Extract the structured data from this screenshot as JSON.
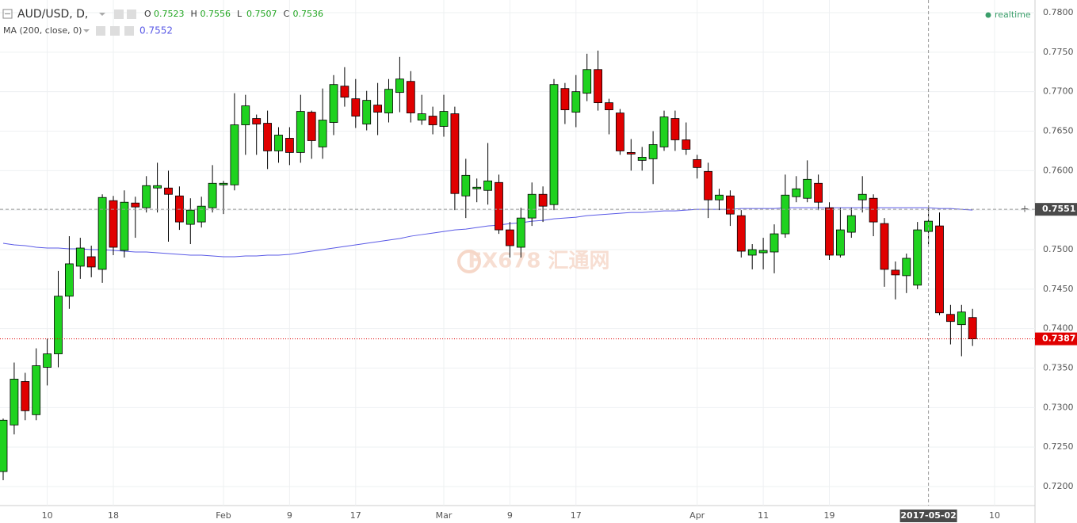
{
  "chart_data": {
    "type": "candlestick",
    "symbol": "AUD/USD, D,",
    "legend_ohlc": [
      {
        "label": "O",
        "value": 0.7523
      },
      {
        "label": "H",
        "value": 0.7556
      },
      {
        "label": "L",
        "value": 0.7507
      },
      {
        "label": "C",
        "value": 0.7536
      }
    ],
    "realtime": "realtime",
    "watermark": "FX678 汇通网",
    "up_color": "#1fd21f",
    "down_color": "#e00000",
    "categories": [
      null,
      null,
      null,
      null,
      "10",
      null,
      null,
      null,
      null,
      null,
      "18",
      null,
      null,
      null,
      null,
      null,
      null,
      null,
      null,
      null,
      "Feb",
      null,
      null,
      null,
      null,
      null,
      "9",
      null,
      null,
      null,
      null,
      null,
      "17",
      null,
      null,
      null,
      null,
      null,
      null,
      null,
      "Mar",
      null,
      null,
      null,
      null,
      null,
      "9",
      null,
      null,
      null,
      null,
      null,
      "17",
      null,
      null,
      null,
      null,
      null,
      null,
      null,
      null,
      null,
      null,
      "Apr",
      null,
      null,
      null,
      null,
      null,
      "11",
      null,
      null,
      null,
      null,
      null,
      "19",
      null,
      null,
      null,
      null,
      null,
      null,
      null,
      null,
      "2017-05-02",
      null,
      null,
      null,
      null,
      null,
      "10"
    ],
    "open": [
      0.7219,
      0.7278,
      0.7333,
      0.7291,
      0.7351,
      0.7368,
      0.7441,
      0.7479,
      0.7491,
      0.7475,
      0.7562,
      0.7499,
      0.7559,
      0.7553,
      0.7578,
      0.7578,
      0.7568,
      0.7532,
      0.7535,
      0.7553,
      0.7582,
      0.7582,
      0.7658,
      0.7666,
      0.766,
      0.7625,
      0.7641,
      0.7623,
      0.7674,
      0.763,
      0.7661,
      0.7707,
      0.7691,
      0.7659,
      0.7683,
      0.7673,
      0.7699,
      0.7713,
      0.7664,
      0.7669,
      0.7656,
      0.7672,
      0.7568,
      0.7577,
      0.7575,
      0.7585,
      0.7525,
      0.7503,
      0.754,
      0.757,
      0.7557,
      0.7704,
      0.7674,
      0.7698,
      0.7728,
      0.7686,
      0.7673,
      0.7623,
      0.7613,
      0.7615,
      0.763,
      0.7666,
      0.7639,
      0.7614,
      0.7599,
      0.7563,
      0.7568,
      0.7543,
      0.7493,
      0.7496,
      0.7497,
      0.752,
      0.7567,
      0.7565,
      0.7584,
      0.7553,
      0.7493,
      0.7522,
      0.7563,
      0.7565,
      0.7533,
      0.7474,
      0.7467,
      0.7455,
      0.7523,
      0.753,
      0.7418,
      0.7405,
      0.7414,
      null,
      null
    ],
    "high": [
      0.7286,
      0.7357,
      0.7344,
      0.7375,
      0.7387,
      0.7473,
      0.7517,
      0.7515,
      0.7505,
      0.757,
      0.7568,
      0.7575,
      0.7567,
      0.7593,
      0.761,
      0.76,
      0.758,
      0.7565,
      0.7567,
      0.7607,
      0.7587,
      0.7698,
      0.7696,
      0.7671,
      0.7676,
      0.7655,
      0.7655,
      0.7696,
      0.7676,
      0.7704,
      0.7721,
      0.7731,
      0.7716,
      0.7701,
      0.7711,
      0.7716,
      0.7744,
      0.7726,
      0.7696,
      0.7681,
      0.7696,
      0.7681,
      0.7615,
      0.759,
      0.7635,
      0.7595,
      0.7535,
      0.7553,
      0.7585,
      0.758,
      0.7716,
      0.7711,
      0.7721,
      0.7748,
      0.7752,
      0.7691,
      0.7678,
      0.764,
      0.763,
      0.765,
      0.7676,
      0.7676,
      0.7661,
      0.762,
      0.761,
      0.7577,
      0.7575,
      0.755,
      0.7507,
      0.7515,
      0.7532,
      0.7595,
      0.7593,
      0.7613,
      0.7595,
      0.756,
      0.7553,
      0.7553,
      0.7593,
      0.757,
      0.754,
      0.7485,
      0.7495,
      0.7535,
      0.7556,
      0.7547,
      0.743,
      0.743,
      0.7425,
      null,
      null
    ],
    "low": [
      0.7208,
      0.7266,
      0.7284,
      0.7284,
      0.7328,
      0.7351,
      0.7425,
      0.7463,
      0.7465,
      0.7458,
      0.7493,
      0.749,
      0.7515,
      0.7547,
      0.7547,
      0.751,
      0.7525,
      0.7507,
      0.7528,
      0.7547,
      0.7545,
      0.7575,
      0.762,
      0.762,
      0.7602,
      0.761,
      0.7607,
      0.761,
      0.7615,
      0.7615,
      0.7645,
      0.7681,
      0.7654,
      0.7651,
      0.7645,
      0.7661,
      0.7674,
      0.7661,
      0.7658,
      0.7646,
      0.7643,
      0.755,
      0.754,
      0.756,
      0.7557,
      0.752,
      0.749,
      0.749,
      0.753,
      0.7535,
      0.755,
      0.7659,
      0.7655,
      0.7688,
      0.7676,
      0.7646,
      0.762,
      0.76,
      0.76,
      0.7583,
      0.7625,
      0.7625,
      0.762,
      0.759,
      0.754,
      0.755,
      0.753,
      0.749,
      0.7475,
      0.7475,
      0.747,
      0.7515,
      0.756,
      0.756,
      0.755,
      0.7487,
      0.749,
      0.7515,
      0.7547,
      0.7517,
      0.7453,
      0.7437,
      0.7445,
      0.745,
      0.7507,
      0.7417,
      0.738,
      0.7365,
      0.7378,
      null,
      null
    ],
    "close": [
      0.7284,
      0.7336,
      0.7296,
      0.7353,
      0.7368,
      0.7441,
      0.7482,
      0.7502,
      0.7478,
      0.7566,
      0.7503,
      0.756,
      0.7554,
      0.7581,
      0.7581,
      0.757,
      0.7535,
      0.755,
      0.7555,
      0.7584,
      0.7584,
      0.7658,
      0.7682,
      0.7659,
      0.7625,
      0.7645,
      0.7623,
      0.7675,
      0.7638,
      0.7664,
      0.7709,
      0.7693,
      0.7669,
      0.7689,
      0.7674,
      0.7703,
      0.7716,
      0.7673,
      0.7672,
      0.7658,
      0.7675,
      0.7571,
      0.7594,
      0.7579,
      0.7587,
      0.7525,
      0.7505,
      0.754,
      0.757,
      0.7555,
      0.7709,
      0.7677,
      0.77,
      0.7728,
      0.7686,
      0.7677,
      0.7625,
      0.7621,
      0.7617,
      0.7633,
      0.7668,
      0.7639,
      0.7627,
      0.7604,
      0.7563,
      0.7569,
      0.7545,
      0.7498,
      0.75,
      0.7499,
      0.752,
      0.7569,
      0.7577,
      0.7589,
      0.756,
      0.7493,
      0.7525,
      0.7543,
      0.757,
      0.7535,
      0.7475,
      0.7468,
      0.7489,
      0.7525,
      0.7536,
      0.742,
      0.7409,
      0.7421,
      0.7387,
      null,
      null
    ],
    "ma": {
      "name": "MA (200, close, 0)",
      "color": "#5a5ae6",
      "current": 0.7552,
      "values": [
        0.7508,
        0.7506,
        0.7505,
        0.7503,
        0.7502,
        0.7502,
        0.7501,
        0.7501,
        0.75,
        0.75,
        0.7499,
        0.7498,
        0.7497,
        0.7497,
        0.7496,
        0.7495,
        0.7494,
        0.7493,
        0.7493,
        0.7492,
        0.7491,
        0.7491,
        0.7492,
        0.7492,
        0.7493,
        0.7493,
        0.7494,
        0.7496,
        0.7498,
        0.75,
        0.7502,
        0.7504,
        0.7506,
        0.7508,
        0.751,
        0.7512,
        0.7514,
        0.7517,
        0.7519,
        0.7521,
        0.7523,
        0.7525,
        0.7526,
        0.7528,
        0.753,
        0.7531,
        0.7533,
        0.7534,
        0.7536,
        0.7537,
        0.7539,
        0.754,
        0.7541,
        0.7543,
        0.7544,
        0.7545,
        0.7546,
        0.7547,
        0.7547,
        0.7548,
        0.7549,
        0.7549,
        0.755,
        0.7551,
        0.7551,
        0.7551,
        0.7551,
        0.7552,
        0.7552,
        0.7552,
        0.7552,
        0.7553,
        0.7553,
        0.7553,
        0.7553,
        0.7553,
        0.7553,
        0.7553,
        0.7553,
        0.7553,
        0.7553,
        0.7553,
        0.7553,
        0.7553,
        0.7553,
        0.7552,
        0.7552,
        0.7551,
        0.755,
        null,
        null
      ]
    },
    "crosshair_index": 84,
    "crosshair_price": 0.7551,
    "last_price": 0.7387,
    "ylim": [
      0.72,
      0.78
    ],
    "yticks": [
      {
        "value": 0.72,
        "label": "0.7200"
      },
      {
        "value": 0.725,
        "label": "0.7250"
      },
      {
        "value": 0.73,
        "label": "0.7300"
      },
      {
        "value": 0.735,
        "label": "0.7350"
      },
      {
        "value": 0.74,
        "label": "0.7400"
      },
      {
        "value": 0.745,
        "label": "0.7450"
      },
      {
        "value": 0.75,
        "label": "0.7500"
      },
      {
        "value": 0.755,
        "label": "0.7550"
      },
      {
        "value": 0.76,
        "label": "0.7600"
      },
      {
        "value": 0.765,
        "label": "0.7650"
      },
      {
        "value": 0.77,
        "label": "0.7700"
      },
      {
        "value": 0.775,
        "label": "0.7750"
      },
      {
        "value": 0.78,
        "label": "0.7800"
      }
    ],
    "grid": true
  }
}
